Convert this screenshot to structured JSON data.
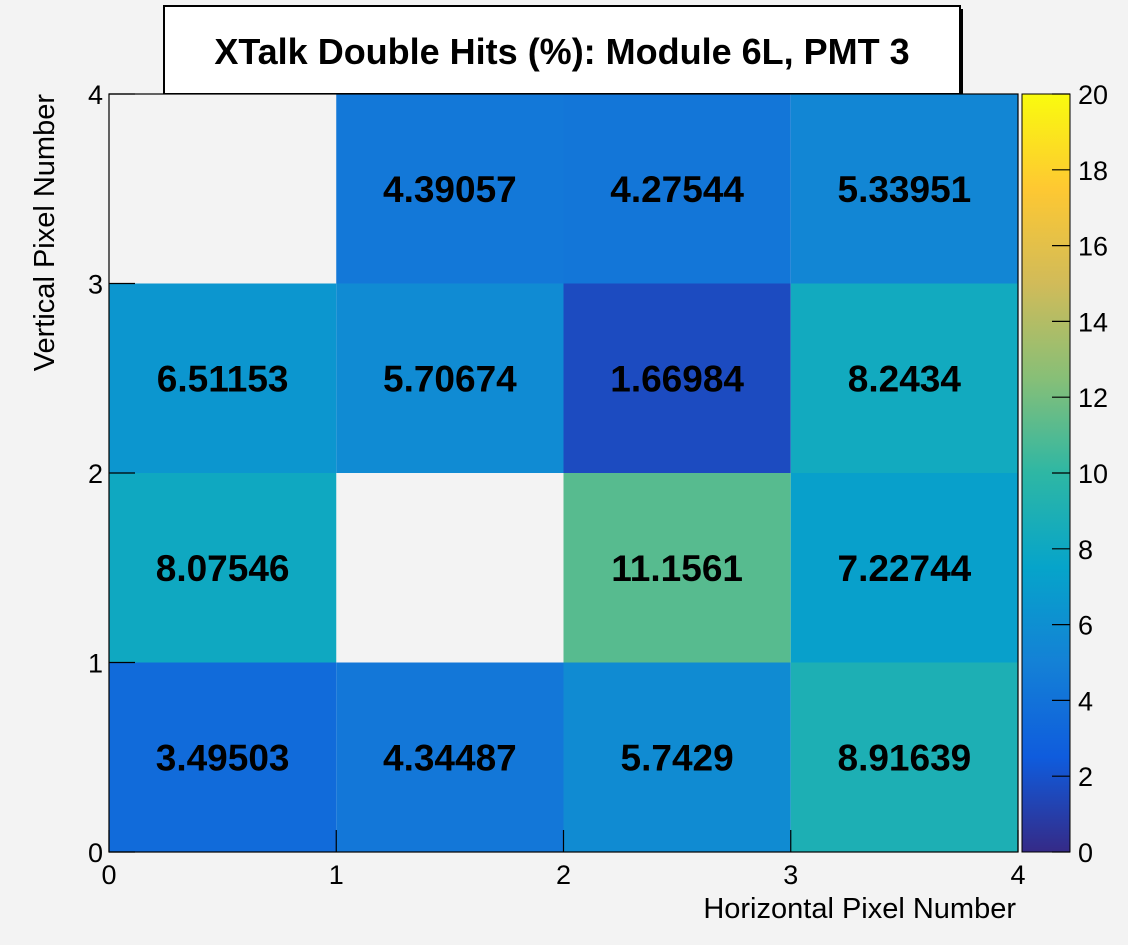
{
  "chart_data": {
    "type": "heatmap",
    "title": "XTalk Double Hits (%): Module 6L, PMT 3",
    "xlabel": "Horizontal Pixel Number",
    "ylabel": "Vertical Pixel Number",
    "xlim": [
      0,
      4
    ],
    "ylim": [
      0,
      4
    ],
    "x_ticks": [
      "0",
      "1",
      "2",
      "3",
      "4"
    ],
    "y_ticks": [
      "0",
      "1",
      "2",
      "3",
      "4"
    ],
    "cells": [
      {
        "x": 0,
        "y": 0,
        "value": 3.49503,
        "label": "3.49503"
      },
      {
        "x": 1,
        "y": 0,
        "value": 4.34487,
        "label": "4.34487"
      },
      {
        "x": 2,
        "y": 0,
        "value": 5.7429,
        "label": "5.7429"
      },
      {
        "x": 3,
        "y": 0,
        "value": 8.91639,
        "label": "8.91639"
      },
      {
        "x": 0,
        "y": 1,
        "value": 8.07546,
        "label": "8.07546"
      },
      {
        "x": 2,
        "y": 1,
        "value": 11.1561,
        "label": "11.1561"
      },
      {
        "x": 3,
        "y": 1,
        "value": 7.22744,
        "label": "7.22744"
      },
      {
        "x": 0,
        "y": 2,
        "value": 6.51153,
        "label": "6.51153"
      },
      {
        "x": 1,
        "y": 2,
        "value": 5.70674,
        "label": "5.70674"
      },
      {
        "x": 2,
        "y": 2,
        "value": 1.66984,
        "label": "1.66984"
      },
      {
        "x": 3,
        "y": 2,
        "value": 8.2434,
        "label": "8.2434"
      },
      {
        "x": 1,
        "y": 3,
        "value": 4.39057,
        "label": "4.39057"
      },
      {
        "x": 2,
        "y": 3,
        "value": 4.27544,
        "label": "4.27544"
      },
      {
        "x": 3,
        "y": 3,
        "value": 5.33951,
        "label": "5.33951"
      }
    ],
    "colorbar": {
      "range": [
        0,
        20
      ],
      "ticks": [
        "0",
        "2",
        "4",
        "6",
        "8",
        "10",
        "12",
        "14",
        "16",
        "18",
        "20"
      ],
      "palette": "parula",
      "colors": [
        "#352a87",
        "#0f5cdd",
        "#1481d6",
        "#06a4ca",
        "#2eb7a4",
        "#87bf77",
        "#d1bb59",
        "#fec832",
        "#f9fb0e"
      ]
    },
    "grid": false,
    "background_color": "#f3f3f3",
    "empty_cell_color": "#f3f3f3"
  }
}
